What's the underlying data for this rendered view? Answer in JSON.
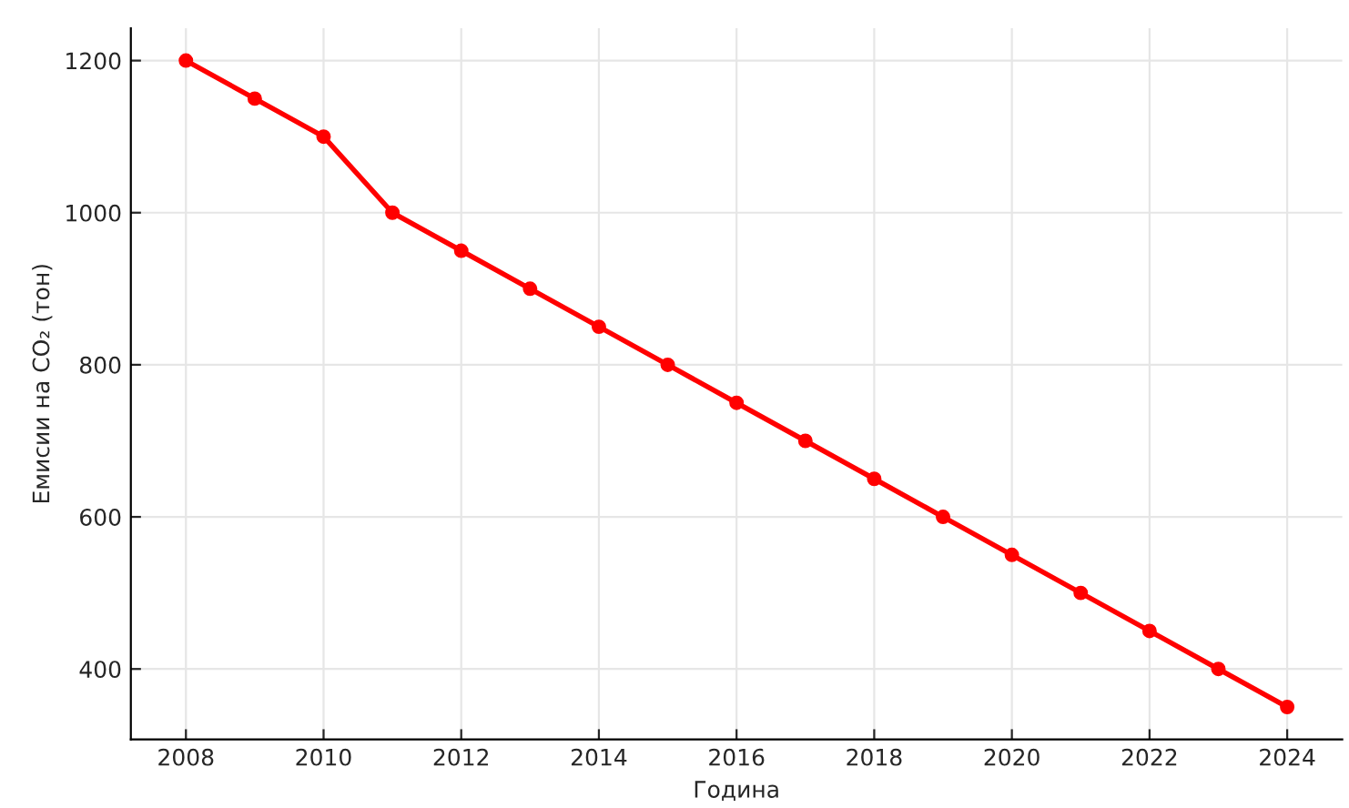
{
  "chart_data": {
    "type": "line",
    "xlabel": "Година",
    "ylabel": "Емисии на CO₂ (тон)",
    "x": [
      2008,
      2009,
      2010,
      2011,
      2012,
      2013,
      2014,
      2015,
      2016,
      2017,
      2018,
      2019,
      2020,
      2021,
      2022,
      2023,
      2024
    ],
    "series": [
      {
        "color": "#ff0000",
        "values": [
          1200,
          1150,
          1100,
          1000,
          950,
          900,
          850,
          800,
          750,
          700,
          650,
          600,
          550,
          500,
          450,
          400,
          350
        ]
      }
    ],
    "xlim": [
      2007.2,
      2024.8
    ],
    "xticks": [
      2008,
      2010,
      2012,
      2014,
      2016,
      2018,
      2020,
      2022,
      2024
    ],
    "ylim": [
      307.5,
      1242.5
    ],
    "yticks": [
      400,
      600,
      800,
      1000,
      1200
    ],
    "grid": true,
    "marker": "circle",
    "line_style": "solid"
  }
}
